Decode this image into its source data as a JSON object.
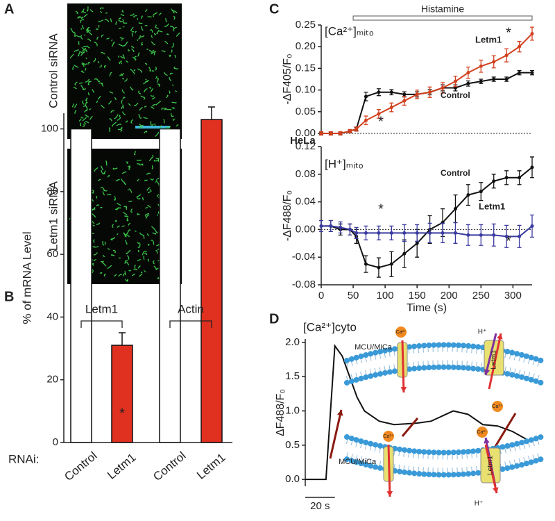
{
  "panel_labels": [
    "A",
    "B",
    "C",
    "D"
  ],
  "images": {
    "labels": [
      "Control siRNA",
      "Letm1 siRNA"
    ]
  },
  "diagram": {
    "labels": [
      "MCU/MiCa",
      "Letm1",
      "Ca²⁺",
      "Ca²⁺",
      "H⁺",
      "MCU/MiCa",
      "Letm1",
      "Ca²⁺",
      "Ca²⁺",
      "H⁺"
    ]
  },
  "chart_data": [
    {
      "type": "bar",
      "ylabel": "% of mRNA Level",
      "row_label": "RNAi:",
      "groups": [
        "Letm1",
        "Actin"
      ],
      "categories": [
        "Control",
        "Letm1",
        "Control",
        "Letm1"
      ],
      "values": [
        100,
        31,
        100,
        103
      ],
      "errors": [
        0,
        4,
        0,
        4
      ],
      "colors": [
        "#ffffff",
        "#e03020",
        "#ffffff",
        "#e03020"
      ],
      "annotations": [
        "*"
      ],
      "ylim": [
        0,
        105
      ],
      "yticks": [
        0,
        20,
        40,
        60,
        80,
        100
      ]
    },
    {
      "type": "line",
      "ylabel": "-ΔF405/F₀",
      "annotations": [
        "Histamine",
        "[Ca²⁺]ₘᵢₜₒ",
        "Letm1",
        "Control",
        "*",
        "*",
        "HeLa"
      ],
      "x": [
        0,
        15,
        30,
        45,
        55,
        70,
        90,
        110,
        130,
        150,
        170,
        190,
        210,
        230,
        250,
        270,
        290,
        310,
        330
      ],
      "series": [
        {
          "name": "Control",
          "color": "#111111",
          "values": [
            0,
            0,
            0,
            0.005,
            0.01,
            0.085,
            0.095,
            0.095,
            0.09,
            0.09,
            0.095,
            0.105,
            0.105,
            0.115,
            0.12,
            0.125,
            0.125,
            0.14,
            0.14
          ],
          "errors": [
            0.003,
            0.003,
            0.003,
            0.003,
            0.004,
            0.01,
            0.008,
            0.006,
            0.006,
            0.006,
            0.006,
            0.007,
            0.007,
            0.006,
            0.005,
            0.005,
            0.005,
            0.005,
            0.005
          ]
        },
        {
          "name": "Letm1",
          "color": "#d2401e",
          "values": [
            0,
            0,
            0,
            0.005,
            0.01,
            0.03,
            0.045,
            0.06,
            0.075,
            0.09,
            0.095,
            0.105,
            0.12,
            0.14,
            0.155,
            0.165,
            0.18,
            0.2,
            0.23
          ],
          "errors": [
            0.004,
            0.004,
            0.004,
            0.004,
            0.005,
            0.01,
            0.01,
            0.01,
            0.01,
            0.01,
            0.012,
            0.012,
            0.012,
            0.013,
            0.014,
            0.014,
            0.015,
            0.012,
            0.015
          ]
        }
      ],
      "xlim": [
        0,
        330
      ],
      "ylim": [
        0,
        0.25
      ],
      "yticks": [
        {
          "value": 0,
          "label": "0.00"
        },
        0.05,
        {
          "value": 0.1,
          "label": "0.10"
        },
        0.15,
        {
          "value": 0.2,
          "label": "0.20"
        },
        0.25
      ]
    },
    {
      "type": "line",
      "ylabel": "-ΔF488/F₀",
      "xlabel": "Time (s)",
      "annotations": [
        "[H⁺]ₘᵢₜₒ",
        "Control",
        "Letm1",
        "*",
        "*"
      ],
      "x": [
        0,
        15,
        30,
        45,
        55,
        70,
        90,
        110,
        130,
        150,
        170,
        190,
        210,
        230,
        250,
        270,
        290,
        310,
        330
      ],
      "series": [
        {
          "name": "Control",
          "color": "#111111",
          "values": [
            0.005,
            0.005,
            0,
            0,
            -0.01,
            -0.05,
            -0.055,
            -0.05,
            -0.035,
            -0.02,
            0,
            0.01,
            0.03,
            0.05,
            0.055,
            0.07,
            0.075,
            0.075,
            0.09
          ],
          "errors": [
            0.008,
            0.008,
            0.008,
            0.008,
            0.01,
            0.012,
            0.014,
            0.018,
            0.02,
            0.02,
            0.02,
            0.02,
            0.02,
            0.015,
            0.013,
            0.01,
            0.01,
            0.01,
            0.015
          ]
        },
        {
          "name": "Letm1",
          "color": "#3a3aa0",
          "values": [
            0.005,
            0.005,
            0.003,
            0,
            -0.005,
            -0.005,
            -0.005,
            -0.005,
            -0.005,
            -0.005,
            -0.005,
            -0.005,
            -0.005,
            -0.008,
            -0.008,
            -0.008,
            -0.01,
            -0.01,
            0.005
          ],
          "errors": [
            0.008,
            0.008,
            0.008,
            0.008,
            0.008,
            0.01,
            0.01,
            0.01,
            0.012,
            0.012,
            0.014,
            0.014,
            0.015,
            0.015,
            0.015,
            0.016,
            0.016,
            0.016,
            0.016
          ]
        }
      ],
      "xlim": [
        0,
        330
      ],
      "ylim": [
        -0.08,
        0.12
      ],
      "xticks": [
        0,
        50,
        100,
        150,
        200,
        250,
        300
      ],
      "yticks": [
        -0.08,
        -0.04,
        {
          "value": 0,
          "label": "0.00"
        },
        0.04,
        0.08,
        0.12
      ]
    },
    {
      "type": "line",
      "ylabel": "ΔF488/F₀",
      "title": "[Ca²⁺]cyto",
      "scale_bar": "20 s",
      "x": [
        0,
        14,
        20,
        25,
        30,
        35,
        40,
        50,
        60,
        75,
        85,
        95,
        100,
        110,
        120,
        130,
        140,
        150
      ],
      "series": [
        {
          "name": "[Ca²⁺]cyto",
          "color": "#111111",
          "values": [
            0,
            0,
            1.95,
            1.8,
            1.5,
            1.2,
            1.0,
            0.85,
            0.8,
            0.82,
            0.85,
            0.95,
            1.0,
            0.95,
            0.8,
            0.78,
            0.7,
            0.58
          ]
        }
      ],
      "xlim": [
        0,
        150
      ],
      "ylim": [
        -0.1,
        2.05
      ],
      "yticks": [
        {
          "value": 0,
          "label": "0.0"
        },
        0.5,
        {
          "value": 1,
          "label": "1.0"
        },
        1.5,
        {
          "value": 2,
          "label": "2.0"
        }
      ]
    }
  ]
}
